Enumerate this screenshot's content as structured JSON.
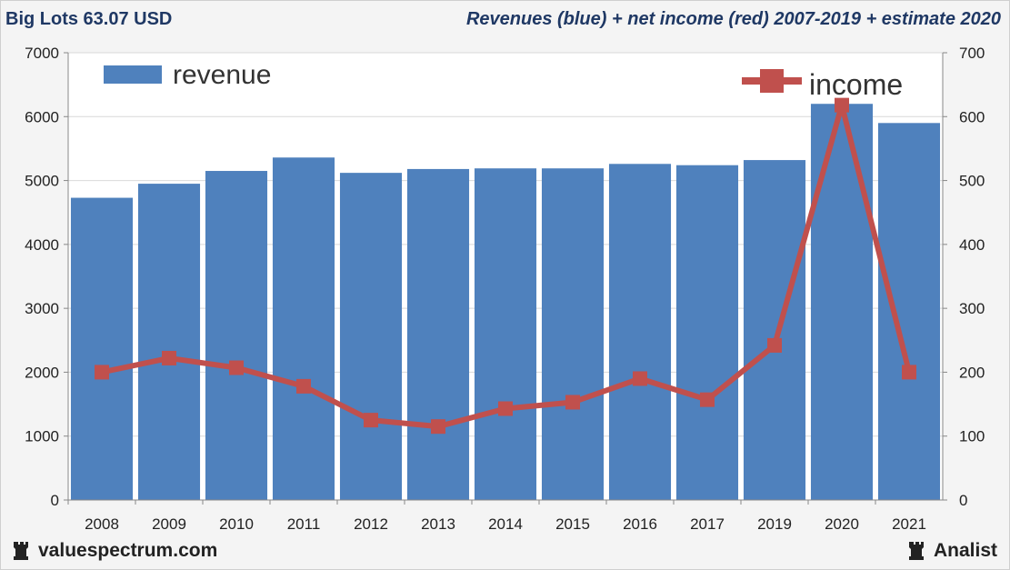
{
  "header": {
    "title": "Big Lots 63.07 USD",
    "subtitle": "Revenues (blue) + net income (red) 2007-2019 + estimate 2020"
  },
  "footer": {
    "site": "valuespectrum.com",
    "brand": "Analist"
  },
  "colors": {
    "revenue": "#4f81bd",
    "income": "#c0504d",
    "title": "#1f3864"
  },
  "chart_data": {
    "type": "bar",
    "categories": [
      "2008",
      "2009",
      "2010",
      "2011",
      "2012",
      "2013",
      "2014",
      "2015",
      "2016",
      "2017",
      "2019",
      "2020",
      "2021"
    ],
    "series": [
      {
        "name": "revenue",
        "type": "bar",
        "axis": "left",
        "values": [
          4730,
          4950,
          5150,
          5360,
          5120,
          5180,
          5190,
          5190,
          5260,
          5240,
          5320,
          6200,
          5900
        ]
      },
      {
        "name": "income",
        "type": "line",
        "axis": "right",
        "values": [
          200,
          222,
          207,
          178,
          125,
          115,
          143,
          153,
          190,
          157,
          242,
          618,
          200
        ]
      }
    ],
    "y_left": {
      "min": 0,
      "max": 7000,
      "ticks": [
        0,
        1000,
        2000,
        3000,
        4000,
        5000,
        6000,
        7000
      ]
    },
    "y_right": {
      "min": 0,
      "max": 700,
      "ticks": [
        0,
        100,
        200,
        300,
        400,
        500,
        600,
        700
      ]
    },
    "grid": true,
    "legend": [
      "revenue: top-left",
      "income: top-right"
    ]
  }
}
